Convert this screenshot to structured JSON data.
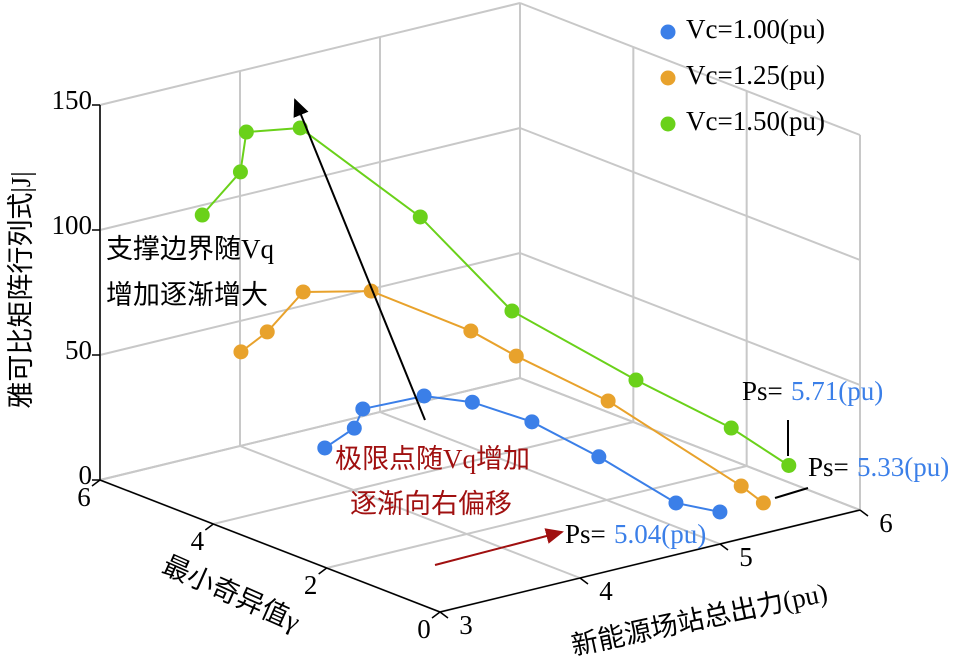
{
  "chart_data": {
    "type": "line3d",
    "xlabel": "新能源场站总出力(pu)",
    "ylabel": "最小奇异值γ",
    "zlabel": "雅可比矩阵行列式|J|",
    "xlim": [
      3,
      6
    ],
    "xticks": [
      3,
      4,
      5,
      6
    ],
    "ylim": [
      0,
      6
    ],
    "yticks": [
      0,
      2,
      4,
      6
    ],
    "zlim": [
      0,
      150
    ],
    "zticks": [
      0,
      50,
      100,
      150
    ],
    "grid": true,
    "legend": "upper right",
    "series": [
      {
        "name": "Vc=1.00(pu)",
        "color": "#3b7fe8",
        "x": [
          3.1,
          3.25,
          3.4,
          3.7,
          4.0,
          4.3,
          4.6,
          4.9,
          5.04
        ],
        "y": [
          2.28,
          2.13,
          2.35,
          2.01,
          1.9,
          1.59,
          1.15,
          0.53,
          0.1
        ],
        "z": [
          44.2,
          51.4,
          55.1,
          59.2,
          53.6,
          44.4,
          30.2,
          13.1,
          11.4
        ]
      },
      {
        "name": "Vc=1.25(pu)",
        "color": "#e8a22c",
        "x": [
          3.1,
          3.3,
          3.5,
          3.8,
          4.2,
          4.5,
          4.8,
          5.2,
          5.33
        ],
        "y": [
          3.76,
          3.79,
          3.65,
          3.19,
          2.42,
          2.36,
          1.48,
          0.12,
          0.05
        ],
        "z": [
          69.6,
          74.6,
          89.1,
          89.4,
          74.8,
          61.2,
          46.9,
          19.4,
          11.5
        ]
      },
      {
        "name": "Vc=1.50(pu)",
        "color": "#6ad11a",
        "x": [
          3.2,
          3.4,
          3.6,
          3.9,
          4.3,
          4.7,
          5.1,
          5.4,
          5.71
        ],
        "y": [
          4.69,
          4.51,
          4.9,
          4.69,
          3.56,
          2.93,
          1.73,
          0.79,
          0.54
        ],
        "z": [
          114.8,
          130.9,
          140.7,
          140.1,
          109.0,
          71.5,
          49.0,
          34.0,
          17.0
        ]
      }
    ],
    "annotations": [
      {
        "lines": [
          "支撑边界随Vq",
          "增加逐渐增大"
        ],
        "color": "#000000"
      },
      {
        "lines": [
          "极限点随Vq增加",
          "逐渐向右偏移"
        ],
        "color": "#a01010"
      }
    ],
    "endpoint_labels": [
      {
        "prefix": "Ps=",
        "text": "5.04(pu)"
      },
      {
        "prefix": "Ps=",
        "text": "5.33(pu)"
      },
      {
        "prefix": "Ps=",
        "text": "5.71(pu)"
      }
    ]
  }
}
